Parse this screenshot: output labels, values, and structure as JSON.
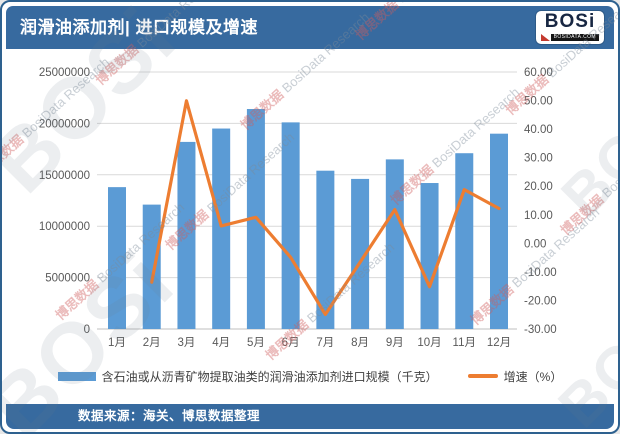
{
  "header": {
    "title": "润滑油添加剂| 进口规模及增速",
    "logo": {
      "text": "BOSi",
      "site": "BOSIDATA.COM"
    }
  },
  "footer": {
    "source": "数据来源：海关、博思数据整理"
  },
  "watermark": {
    "cn": "博思数据",
    "en": "BosiData Research",
    "logo": "BOSi",
    "site": "BOSIDATA.COM"
  },
  "chart_data": {
    "type": "bar+line",
    "categories": [
      "1月",
      "2月",
      "3月",
      "4月",
      "5月",
      "6月",
      "7月",
      "8月",
      "9月",
      "10月",
      "11月",
      "12月"
    ],
    "series": [
      {
        "name": "含石油或从沥青矿物提取油类的润滑油添加剂进口规模（千克）",
        "type": "bar",
        "axis": "left",
        "color": "#5b9bd5",
        "values": [
          13800000,
          12100000,
          18200000,
          19500000,
          21400000,
          20100000,
          15400000,
          14600000,
          16500000,
          14200000,
          17100000,
          19000000
        ]
      },
      {
        "name": "增速（%）",
        "type": "line",
        "axis": "right",
        "color": "#ed7d31",
        "values": [
          null,
          -13.6,
          49.9,
          6.1,
          9.1,
          -4.9,
          -24.9,
          -6.6,
          11.8,
          -15.2,
          18.8,
          12.2
        ]
      }
    ],
    "left_axis": {
      "min": 0,
      "max": 25000000,
      "step": 5000000,
      "tick_labels": [
        "0",
        "5000000",
        "10000000",
        "15000000",
        "20000000",
        "25000000"
      ]
    },
    "right_axis": {
      "min": -30,
      "max": 60,
      "step": 10,
      "tick_labels": [
        "-30.00",
        "-20.00",
        "-10.00",
        "0.00",
        "10.00",
        "20.00",
        "30.00",
        "40.00",
        "50.00",
        "60.00"
      ]
    },
    "grid": true,
    "legend_position": "bottom"
  }
}
